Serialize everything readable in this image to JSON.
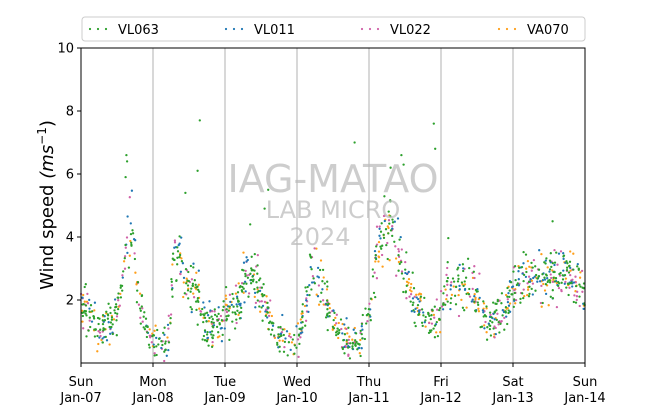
{
  "chart_data": {
    "type": "scatter",
    "xlabel": "",
    "ylabel": "Wind speed",
    "ylabel_unit": "(ms",
    "ylabel_unit_exp": "−1",
    "ylabel_unit_close": ")",
    "ylim": [
      0,
      10
    ],
    "y_ticks": [
      2,
      4,
      6,
      8,
      10
    ],
    "x_range_days": [
      0,
      7
    ],
    "x_ticks": [
      {
        "day": 0,
        "label1": "Sun",
        "label2": "Jan-07"
      },
      {
        "day": 1,
        "label1": "Mon",
        "label2": "Jan-08"
      },
      {
        "day": 2,
        "label1": "Tue",
        "label2": "Jan-09"
      },
      {
        "day": 3,
        "label1": "Wed",
        "label2": "Jan-10"
      },
      {
        "day": 4,
        "label1": "Thu",
        "label2": "Jan-11"
      },
      {
        "day": 5,
        "label1": "Fri",
        "label2": "Jan-12"
      },
      {
        "day": 6,
        "label1": "Sat",
        "label2": "Jan-13"
      },
      {
        "day": 7,
        "label1": "Sun",
        "label2": "Jan-14"
      }
    ],
    "grid": "vertical lines at day boundaries",
    "legend_position": "top",
    "series": [
      {
        "name": "VL063",
        "color": "#2ca02c"
      },
      {
        "name": "VL011",
        "color": "#1f77b4"
      },
      {
        "name": "VL022",
        "color": "#d062a8"
      },
      {
        "name": "VA070",
        "color": "#ff9f1a"
      }
    ],
    "trend_profile": {
      "day_grid": [
        0,
        0.25,
        0.5,
        0.6,
        0.7,
        0.8,
        0.95,
        1.1,
        1.2,
        1.3,
        1.4,
        1.5,
        1.6,
        1.7,
        2.0,
        2.2,
        2.3,
        2.5,
        2.7,
        2.9,
        3.0,
        3.2,
        3.35,
        3.5,
        3.7,
        3.85,
        4.0,
        4.15,
        4.3,
        4.45,
        4.6,
        4.75,
        4.9,
        5.0,
        5.1,
        5.2,
        5.35,
        5.5,
        5.65,
        5.8,
        6.0,
        6.15,
        6.3,
        6.5,
        6.7,
        6.85,
        7.0
      ],
      "wind_speed_ms": [
        2.0,
        0.9,
        1.6,
        3.0,
        4.5,
        2.2,
        0.7,
        0.55,
        0.4,
        3.5,
        3.0,
        2.2,
        2.5,
        1.2,
        1.4,
        2.0,
        3.0,
        2.2,
        1.0,
        0.6,
        0.5,
        2.8,
        2.5,
        1.3,
        0.7,
        0.6,
        1.5,
        4.0,
        4.5,
        3.2,
        2.0,
        1.6,
        1.3,
        1.6,
        2.8,
        2.4,
        2.7,
        2.2,
        1.2,
        1.5,
        2.4,
        2.8,
        2.8,
        2.7,
        3.0,
        2.5,
        2.2
      ],
      "spread_ms": 0.55,
      "points_per_series": 700
    },
    "outliers": [
      {
        "day": 0.63,
        "y": 6.6
      },
      {
        "day": 0.64,
        "y": 6.4
      },
      {
        "day": 0.62,
        "y": 5.9
      },
      {
        "day": 1.65,
        "y": 7.7
      },
      {
        "day": 1.62,
        "y": 6.1
      },
      {
        "day": 1.45,
        "y": 5.4
      },
      {
        "day": 2.6,
        "y": 5.5
      },
      {
        "day": 2.55,
        "y": 4.9
      },
      {
        "day": 3.8,
        "y": 7.0
      },
      {
        "day": 4.45,
        "y": 6.6
      },
      {
        "day": 4.48,
        "y": 6.3
      },
      {
        "day": 4.9,
        "y": 7.6
      },
      {
        "day": 4.92,
        "y": 6.8
      },
      {
        "day": 4.3,
        "y": 6.2
      },
      {
        "day": 2.35,
        "y": 4.4
      },
      {
        "day": 6.55,
        "y": 4.5
      }
    ]
  },
  "watermark": {
    "line1": "IAG-MATAO",
    "line2": "LAB MICRO",
    "line3": "2024"
  }
}
